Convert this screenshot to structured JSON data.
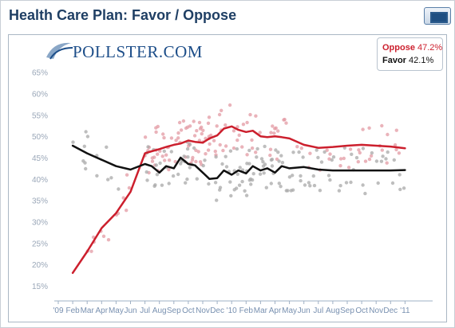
{
  "header": {
    "title": "Health Care Plan: Favor / Oppose"
  },
  "logo": {
    "text": "POLLSTER.COM"
  },
  "legend": {
    "oppose_label": "Oppose",
    "oppose_value": "47.2%",
    "favor_label": "Favor",
    "favor_value": "42.1%"
  },
  "colors": {
    "oppose": "#cc1f2d",
    "favor": "#111111",
    "oppose_dots": "#e39aa3",
    "favor_dots": "#a8a8a8",
    "title": "#1f3f64"
  },
  "chart_data": {
    "type": "line",
    "title": "Health Care Plan: Favor / Oppose",
    "xlabel": "",
    "ylabel": "",
    "x_axis": "months from Jan 2009 to Jan 2011",
    "x_tick_labels": [
      "'09",
      "Feb",
      "Mar",
      "Apr",
      "May",
      "Jun",
      "Jul",
      "Aug",
      "Sep",
      "Oct",
      "Nov",
      "Dec",
      "'10",
      "Feb",
      "Mar",
      "Apr",
      "May",
      "Jun",
      "Jul",
      "Aug",
      "Sep",
      "Oct",
      "Nov",
      "Dec",
      "'11"
    ],
    "y_tick_labels": [
      "15%",
      "20%",
      "25%",
      "30%",
      "35%",
      "40%",
      "45%",
      "50%",
      "55%",
      "60%",
      "65%"
    ],
    "ylim": [
      12,
      67
    ],
    "grid": false,
    "legend_position": "top-right",
    "series": [
      {
        "name": "Oppose",
        "current": 47.2,
        "x": [
          "2009-02",
          "2009-03",
          "2009-04",
          "2009-05",
          "2009-06",
          "2009-07",
          "2009-07-15",
          "2009-08",
          "2009-08-15",
          "2009-09",
          "2009-09-15",
          "2009-10",
          "2009-10-15",
          "2009-11",
          "2009-11-15",
          "2009-12",
          "2009-12-15",
          "2010-01",
          "2010-01-15",
          "2010-02",
          "2010-02-15",
          "2010-03",
          "2010-03-15",
          "2010-04",
          "2010-04-15",
          "2010-05",
          "2010-06",
          "2010-07",
          "2010-08",
          "2010-09",
          "2010-10",
          "2010-11",
          "2010-12",
          "2011-01"
        ],
        "values": [
          18,
          23,
          28.5,
          32,
          37,
          46,
          46.5,
          47,
          47.5,
          48,
          48.3,
          49,
          48.7,
          48.5,
          49.5,
          50.2,
          51.8,
          52.3,
          51.5,
          51,
          51.3,
          50,
          49.8,
          50,
          49.8,
          49.5,
          48,
          47.3,
          47.5,
          47.8,
          48,
          47.8,
          47.6,
          47.2
        ]
      },
      {
        "name": "Favor",
        "current": 42.1,
        "x": [
          "2009-02",
          "2009-03",
          "2009-04",
          "2009-05",
          "2009-06",
          "2009-07",
          "2009-07-15",
          "2009-08",
          "2009-08-15",
          "2009-09",
          "2009-09-15",
          "2009-10",
          "2009-10-15",
          "2009-11",
          "2009-11-15",
          "2009-12",
          "2009-12-15",
          "2010-01",
          "2010-01-15",
          "2010-02",
          "2010-02-15",
          "2010-03",
          "2010-03-15",
          "2010-04",
          "2010-04-15",
          "2010-05",
          "2010-06",
          "2010-07",
          "2010-08",
          "2010-09",
          "2010-10",
          "2010-11",
          "2010-12",
          "2011-01"
        ],
        "values": [
          47.8,
          46,
          44.5,
          43,
          42.2,
          43.5,
          43,
          41.5,
          43,
          42.5,
          45,
          43.5,
          43.2,
          41.5,
          40,
          40.2,
          42,
          41,
          42,
          41.3,
          43,
          42,
          42.5,
          41.5,
          43,
          42.5,
          42.8,
          42.2,
          42,
          42,
          42,
          42,
          42,
          42.1
        ]
      }
    ]
  }
}
